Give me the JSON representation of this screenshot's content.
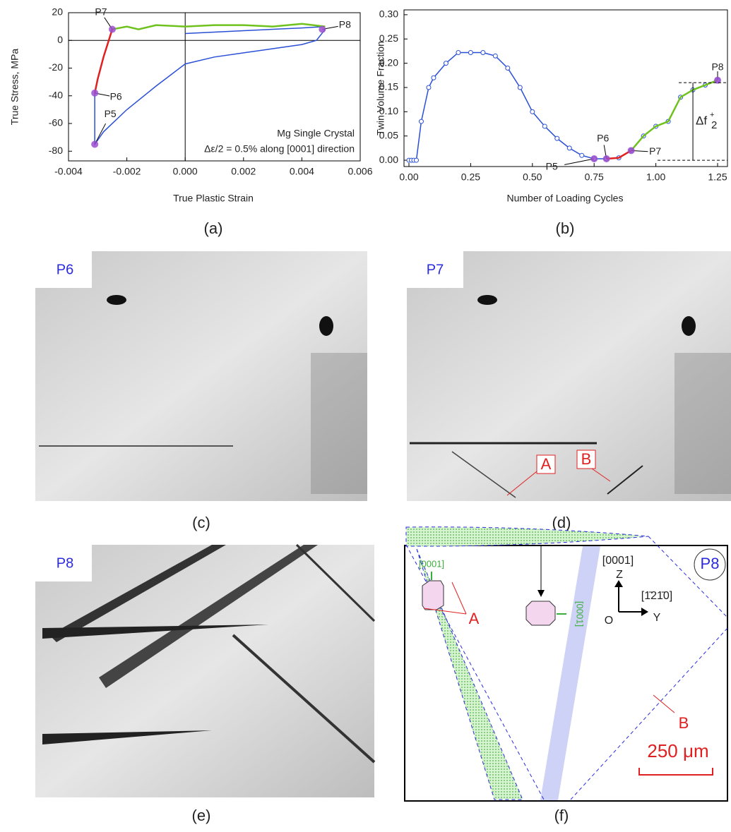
{
  "chart_data": [
    {
      "type": "line",
      "xlabel": "True Plastic Strain",
      "ylabel": "True Stress, MPa",
      "xlim": [
        -0.004,
        0.006
      ],
      "ylim": [
        -87,
        20
      ],
      "xticks": [
        -0.004,
        -0.002,
        {
          "value": 0,
          "label": "0.000"
        },
        0.002,
        0.004,
        0.006
      ],
      "yticks": [
        -80,
        -60,
        -40,
        -20,
        0,
        20
      ],
      "zero_lines": true,
      "series": [
        {
          "color": "#2a4fd6",
          "x": [
            0.0048,
            0.0045,
            0.004,
            0.003,
            0.002,
            0.001,
            0,
            -0.001,
            -0.002,
            -0.0028,
            -0.0031,
            -0.0031
          ],
          "values": [
            8,
            0,
            -3,
            -6,
            -9,
            -12,
            -17,
            -33,
            -50,
            -66,
            -75,
            -38
          ]
        },
        {
          "color": "#2a4fd6",
          "x": [
            0,
            0.001,
            0.002,
            0.003,
            0.004,
            0.0048
          ],
          "values": [
            5,
            6,
            7,
            8,
            9,
            10
          ]
        },
        {
          "color": "#e02020",
          "x": [
            -0.0031,
            -0.003,
            -0.0028,
            -0.0025
          ],
          "values": [
            -38,
            -28,
            -12,
            8
          ]
        },
        {
          "color": "#6fc21e",
          "x": [
            -0.0025,
            -0.002,
            -0.0016,
            -0.001,
            0,
            0.001,
            0.002,
            0.003,
            0.004,
            0.0048
          ],
          "values": [
            8,
            10,
            8,
            11,
            10,
            11,
            11,
            10,
            12,
            10
          ]
        }
      ],
      "point_color": "#9b4fd0",
      "points": [
        {
          "label": "P5",
          "x": -0.0031,
          "y": -75
        },
        {
          "label": "P6",
          "x": -0.0031,
          "y": -38
        },
        {
          "label": "P7",
          "x": -0.0025,
          "y": 8
        },
        {
          "label": "P8",
          "x": 0.0047,
          "y": 8
        }
      ],
      "annotations": [
        "Mg Single Crystal",
        "Δε/2 = 0.5% along [0001] direction"
      ],
      "panel": "(a)"
    },
    {
      "type": "line",
      "xlabel": "Number of Loading Cycles",
      "ylabel": "Twin Volume Fraction",
      "xlim": [
        -0.02,
        1.29
      ],
      "ylim": [
        -0.013,
        0.31
      ],
      "xticks": [
        {
          "value": 0,
          "label": "0.00"
        },
        0.25,
        {
          "value": 0.5,
          "label": "0.50"
        },
        0.75,
        {
          "value": 1,
          "label": "1.00"
        },
        1.25
      ],
      "yticks": [
        {
          "value": 0,
          "label": "0.00"
        },
        0.05,
        {
          "value": 0.1,
          "label": "0.10"
        },
        0.15,
        {
          "value": 0.2,
          "label": "0.20"
        },
        0.25,
        {
          "value": 0.3,
          "label": "0.30"
        }
      ],
      "zero_lines": false,
      "series": [
        {
          "color": "#2a4fd6",
          "marker": "circle",
          "x": [
            0,
            0.01,
            0.02,
            0.03,
            0.05,
            0.08,
            0.1,
            0.15,
            0.2,
            0.25,
            0.3,
            0.35,
            0.4,
            0.45,
            0.5,
            0.55,
            0.6,
            0.65,
            0.7,
            0.75,
            0.8,
            0.85,
            0.9,
            0.95,
            1.0,
            1.05,
            1.1,
            1.15,
            1.2,
            1.25
          ],
          "values": [
            0,
            0,
            0,
            0,
            0.08,
            0.15,
            0.17,
            0.2,
            0.222,
            0.222,
            0.222,
            0.215,
            0.19,
            0.15,
            0.1,
            0.07,
            0.045,
            0.025,
            0.01,
            0.003,
            0.003,
            0.005,
            0.02,
            0.05,
            0.07,
            0.08,
            0.13,
            0.145,
            0.155,
            0.165
          ]
        },
        {
          "color": "#e02020",
          "x": [
            0.8,
            0.85,
            0.9
          ],
          "values": [
            0.003,
            0.005,
            0.02
          ]
        },
        {
          "color": "#6fc21e",
          "x": [
            0.9,
            0.95,
            1.0,
            1.05,
            1.1,
            1.15,
            1.2,
            1.25
          ],
          "values": [
            0.02,
            0.05,
            0.07,
            0.08,
            0.13,
            0.145,
            0.155,
            0.165
          ]
        }
      ],
      "point_color": "#9b4fd0",
      "points": [
        {
          "label": "P5",
          "x": 0.75,
          "y": 0.003
        },
        {
          "label": "P6",
          "x": 0.8,
          "y": 0.003
        },
        {
          "label": "P7",
          "x": 0.9,
          "y": 0.02
        },
        {
          "label": "P8",
          "x": 1.25,
          "y": 0.165
        }
      ],
      "delta": {
        "x": 1.15,
        "range": [
          0,
          0.16
        ],
        "label": "Δf",
        "sup": "+",
        "sub": "2"
      },
      "panel": "(b)"
    }
  ],
  "panels": {
    "c": {
      "label": "(c)",
      "tag": "P6"
    },
    "d": {
      "label": "(d)",
      "tag": "P7",
      "marks": [
        "A",
        "B"
      ]
    },
    "e": {
      "label": "(e)",
      "tag": "P8"
    },
    "f": {
      "label": "(f)",
      "tag": "P8",
      "axis_z_dir": "[0001]",
      "axis_z": "Z",
      "axis_y_dir": "[1̄21̄0]",
      "origin": "O",
      "axis_y": "Y",
      "crystal_top": "[0001]",
      "crystal_mid": "[0001]",
      "marks": [
        "A",
        "B"
      ],
      "scale": "250 μm"
    }
  }
}
